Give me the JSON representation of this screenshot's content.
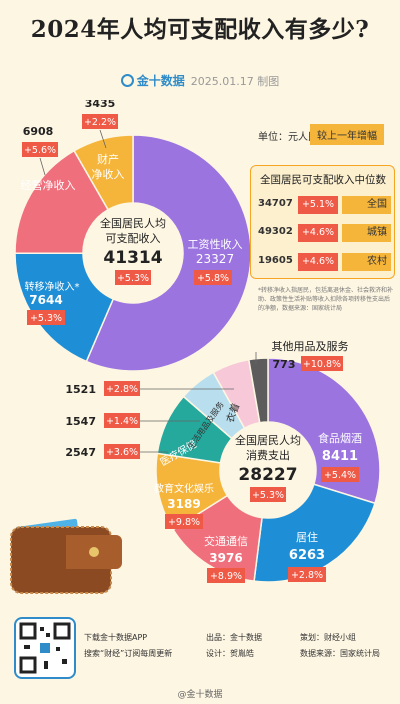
{
  "title": "2024年人均可支配收入有多少?",
  "brand": {
    "name": "金十数据",
    "date_text": "2025.01.17 制图"
  },
  "unit_label": "单位：元人民币",
  "compare_label": "较上一年增幅",
  "colors": {
    "purple": "#9b74e0",
    "blue": "#1e8fd6",
    "pink": "#ef6f7c",
    "yellow": "#f5b53b",
    "red_badge": "#ef5a47",
    "teal": "#25a99d",
    "gray": "#5c5c5c",
    "light_pink": "#f7c9d8",
    "light_blue": "#b9dfee"
  },
  "chart_data": [
    {
      "type": "pie",
      "title": "",
      "center": {
        "line1": "全国居民人均",
        "line2": "可支配收入",
        "value": "41314",
        "change": "+5.3%"
      },
      "slices": [
        {
          "name": "工资性收入",
          "value": 23327,
          "change": "+5.8%",
          "color": "#9b74e0"
        },
        {
          "name": "转移净收入*",
          "value": 7644,
          "change": "+5.3%",
          "color": "#1e8fd6"
        },
        {
          "name": "经营净收入",
          "value": 6908,
          "change": "+5.6%",
          "color": "#ef6f7c"
        },
        {
          "name": "财产净收入",
          "value": 3435,
          "change": "+2.2%",
          "color": "#f5b53b"
        }
      ]
    },
    {
      "type": "pie",
      "title": "",
      "center": {
        "line1": "全国居民人均",
        "line2": "消费支出",
        "value": "28227",
        "change": "+5.3%"
      },
      "slices": [
        {
          "name": "食品烟酒",
          "value": 8411,
          "change": "+5.4%",
          "color": "#9b74e0"
        },
        {
          "name": "居住",
          "value": 6263,
          "change": "+2.8%",
          "color": "#1e8fd6"
        },
        {
          "name": "交通通信",
          "value": 3976,
          "change": "+8.9%",
          "color": "#ef6f7c"
        },
        {
          "name": "教育文化娱乐",
          "value": 3189,
          "change": "+9.8%",
          "color": "#f5b53b"
        },
        {
          "name": "医疗保健",
          "value": 2547,
          "change": "+3.6%",
          "color": "#25a99d"
        },
        {
          "name": "生活用品及服务",
          "value": 1547,
          "change": "+1.4%",
          "color": "#b9dfee"
        },
        {
          "name": "衣着",
          "value": 1521,
          "change": "+2.8%",
          "color": "#f7c9d8"
        },
        {
          "name": "其他用品及服务",
          "value": 773,
          "change": "+10.8%",
          "color": "#5c5c5c"
        }
      ]
    }
  ],
  "median": {
    "title": "全国居民可支配收入中位数",
    "rows": [
      {
        "value": "34707",
        "change": "+5.1%",
        "label": "全国"
      },
      {
        "value": "49302",
        "change": "+4.6%",
        "label": "城镇"
      },
      {
        "value": "19605",
        "change": "+4.6%",
        "label": "农村"
      }
    ]
  },
  "note": "*转移净收入指居民，包括离退休金、社会救济和补助、政策性生活补贴等收入扣除各项转移性支出后的净额，数据来源：国家统计局",
  "footer": {
    "download": "下载金十数据APP",
    "search": "搜索“财经”订阅每周更新",
    "producer_label": "出品：金十数据",
    "design_label": "设计：贺胤皓",
    "planner_label": "策划：财经小组",
    "source_label": "数据来源：国家统计局",
    "watermark": "@金十数据"
  }
}
